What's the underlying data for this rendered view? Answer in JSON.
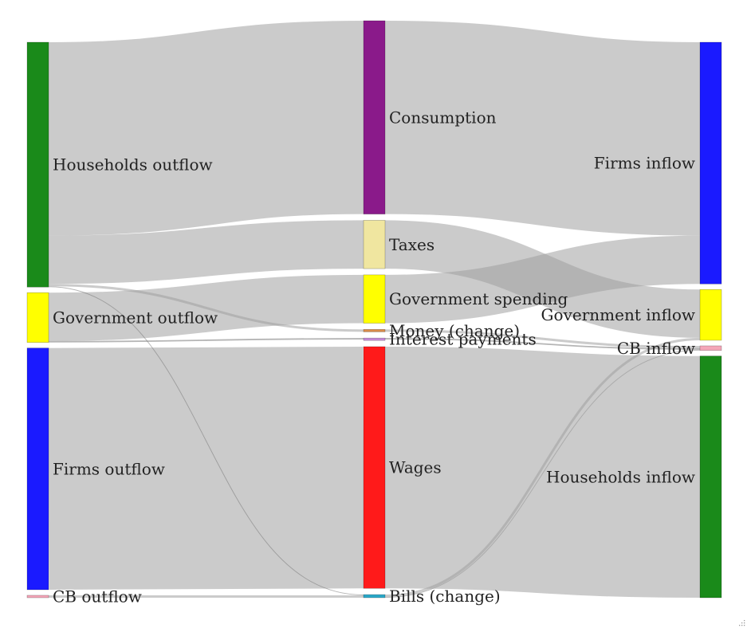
{
  "chart_data": {
    "type": "sankey",
    "nodes": [
      {
        "id": "hh_out",
        "label": "Households outflow",
        "color": "#1a8a1a",
        "column": 0
      },
      {
        "id": "gov_out",
        "label": "Government outflow",
        "color": "#ffff00",
        "column": 0
      },
      {
        "id": "firm_out",
        "label": "Firms outflow",
        "color": "#1a1aff",
        "column": 0
      },
      {
        "id": "cb_out",
        "label": "CB outflow",
        "color": "#f4a6b8",
        "column": 0
      },
      {
        "id": "cons",
        "label": "Consumption",
        "color": "#8a1a8a",
        "column": 1
      },
      {
        "id": "taxes",
        "label": "Taxes",
        "color": "#f0e6a0",
        "column": 1
      },
      {
        "id": "gspend",
        "label": "Government spending",
        "color": "#ffff00",
        "column": 1
      },
      {
        "id": "money",
        "label": "Money (change)",
        "color": "#d98c4a",
        "column": 1
      },
      {
        "id": "intpay",
        "label": "Interest payments",
        "color": "#c58ad8",
        "column": 1
      },
      {
        "id": "wages",
        "label": "Wages",
        "color": "#ff1a1a",
        "column": 1
      },
      {
        "id": "bills",
        "label": "Bills (change)",
        "color": "#2aa8c8",
        "column": 1
      },
      {
        "id": "firm_in",
        "label": "Firms inflow",
        "color": "#1a1aff",
        "column": 2
      },
      {
        "id": "gov_in",
        "label": "Government inflow",
        "color": "#ffff00",
        "column": 2
      },
      {
        "id": "cb_in",
        "label": "CB inflow",
        "color": "#f4a6b8",
        "column": 2
      },
      {
        "id": "hh_in",
        "label": "Households inflow",
        "color": "#1a8a1a",
        "column": 2
      }
    ],
    "links": [
      {
        "source": "hh_out",
        "target": "cons",
        "value": 80
      },
      {
        "source": "hh_out",
        "target": "taxes",
        "value": 20
      },
      {
        "source": "hh_out",
        "target": "money",
        "value": 1
      },
      {
        "source": "hh_out",
        "target": "bills",
        "value": 0.3
      },
      {
        "source": "gov_out",
        "target": "gspend",
        "value": 20
      },
      {
        "source": "gov_out",
        "target": "intpay",
        "value": 0.6
      },
      {
        "source": "firm_out",
        "target": "wages",
        "value": 100
      },
      {
        "source": "cb_out",
        "target": "bills",
        "value": 1
      },
      {
        "source": "cons",
        "target": "firm_in",
        "value": 80
      },
      {
        "source": "taxes",
        "target": "gov_in",
        "value": 20
      },
      {
        "source": "gspend",
        "target": "firm_in",
        "value": 20
      },
      {
        "source": "money",
        "target": "cb_in",
        "value": 1
      },
      {
        "source": "intpay",
        "target": "cb_in",
        "value": 0.6
      },
      {
        "source": "wages",
        "target": "hh_in",
        "value": 100
      },
      {
        "source": "bills",
        "target": "gov_in",
        "value": 1
      },
      {
        "source": "bills",
        "target": "cb_in",
        "value": 0.3
      }
    ]
  }
}
